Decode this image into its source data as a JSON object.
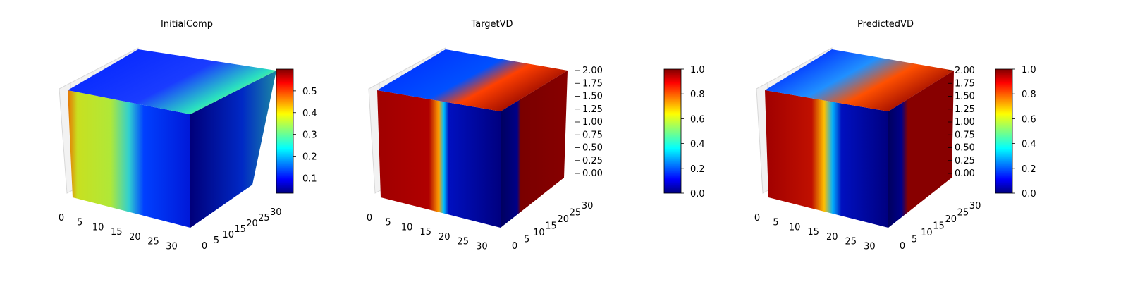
{
  "chart_data": [
    {
      "type": "heatmap",
      "title": "InitialComp",
      "x_ticks": [
        "0",
        "5",
        "10",
        "15",
        "20",
        "25",
        "30"
      ],
      "y_ticks": [
        "0",
        "5",
        "10",
        "15",
        "20",
        "25",
        "30"
      ],
      "z_ticks": [],
      "xlim": [
        0,
        32
      ],
      "ylim": [
        0,
        32
      ],
      "zlim": [
        0,
        2
      ],
      "colorbar": {
        "ticks": [
          "0.1",
          "0.2",
          "0.3",
          "0.4",
          "0.5"
        ],
        "range": [
          0.03,
          0.6
        ]
      },
      "grid": true
    },
    {
      "type": "heatmap",
      "title": "TargetVD",
      "x_ticks": [
        "0",
        "5",
        "10",
        "15",
        "20",
        "25",
        "30"
      ],
      "y_ticks": [
        "0",
        "5",
        "10",
        "15",
        "20",
        "25",
        "30"
      ],
      "z_ticks": [
        "0.00",
        "0.25",
        "0.50",
        "0.75",
        "1.00",
        "1.25",
        "1.50",
        "1.75",
        "2.00"
      ],
      "xlim": [
        0,
        32
      ],
      "ylim": [
        0,
        32
      ],
      "zlim": [
        0,
        2
      ],
      "colorbar": {
        "ticks": [
          "0.0",
          "0.2",
          "0.4",
          "0.6",
          "0.8",
          "1.0"
        ],
        "range": [
          0,
          1
        ]
      },
      "grid": true
    },
    {
      "type": "heatmap",
      "title": "PredictedVD",
      "x_ticks": [
        "0",
        "5",
        "10",
        "15",
        "20",
        "25",
        "30"
      ],
      "y_ticks": [
        "0",
        "5",
        "10",
        "15",
        "20",
        "25",
        "30"
      ],
      "z_ticks": [
        "0.00",
        "0.25",
        "0.50",
        "0.75",
        "1.00",
        "1.25",
        "1.50",
        "1.75",
        "2.00"
      ],
      "xlim": [
        0,
        32
      ],
      "ylim": [
        0,
        32
      ],
      "zlim": [
        0,
        2
      ],
      "colorbar": {
        "ticks": [
          "0.0",
          "0.2",
          "0.4",
          "0.6",
          "0.8",
          "1.0"
        ],
        "range": [
          0,
          1
        ]
      },
      "grid": true
    }
  ],
  "colormap": "jet"
}
